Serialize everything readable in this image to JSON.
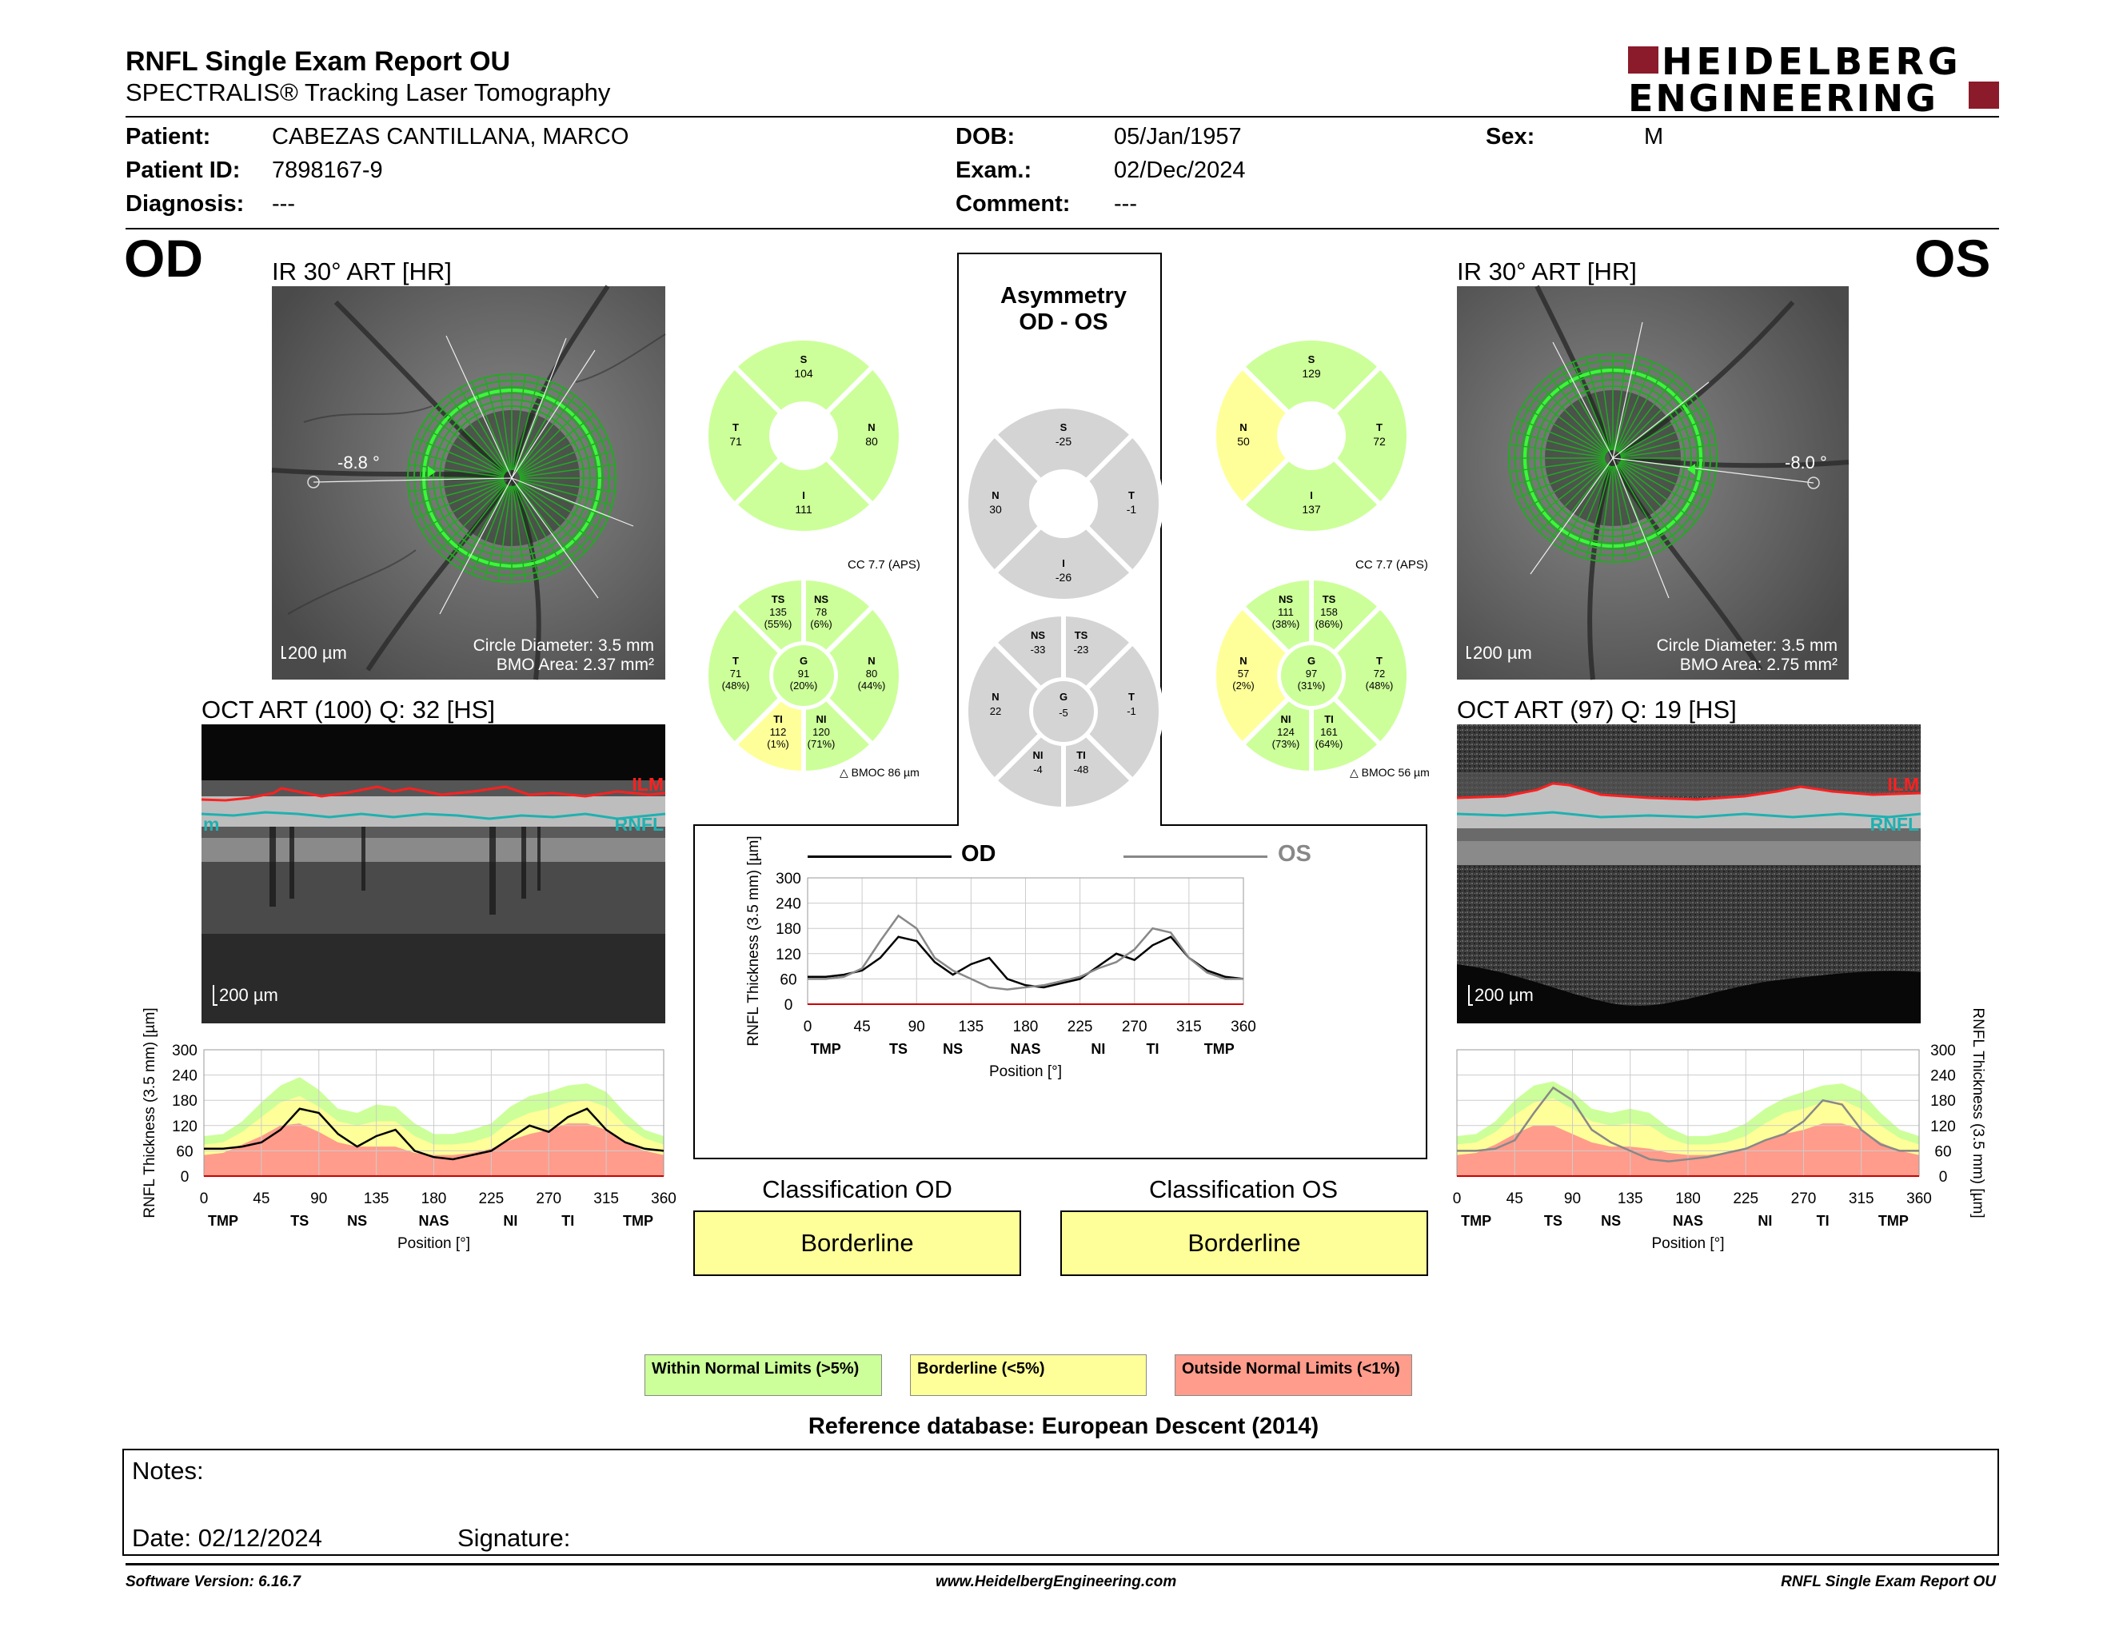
{
  "header": {
    "title": "RNFL Single Exam Report OU",
    "subtitle": "SPECTRALIS® Tracking Laser Tomography",
    "logo_line1": "HEIDELBERG",
    "logo_line2": "ENGINEERING"
  },
  "patient": {
    "patient_label": "Patient:",
    "patient_value": "CABEZAS CANTILLANA, MARCO",
    "id_label": "Patient ID:",
    "id_value": "7898167-9",
    "diagnosis_label": "Diagnosis:",
    "diagnosis_value": "---",
    "dob_label": "DOB:",
    "dob_value": "05/Jan/1957",
    "exam_label": "Exam.:",
    "exam_value": "02/Dec/2024",
    "comment_label": "Comment:",
    "comment_value": "---",
    "sex_label": "Sex:",
    "sex_value": "M"
  },
  "od": {
    "eye_label": "OD",
    "ir_title": "IR 30° ART [HR]",
    "angle": "-8.8 °",
    "scale": "200 µm",
    "circle_diameter": "Circle Diameter: 3.5 mm",
    "bmo_area": "BMO Area: 2.37 mm²",
    "oct_title": "OCT ART (100) Q: 32 [HS]",
    "oct_scale": "200 µm",
    "ilm": "ILM",
    "rnfl": "RNFL",
    "rnfl_small": "m",
    "cc": "CC 7.7 (APS)",
    "bmoc": "BMOC 86 µm",
    "quad": {
      "S": "104",
      "N": "80",
      "I": "111",
      "T": "71"
    },
    "sect": {
      "TS": [
        "135",
        "(55%)"
      ],
      "NS": [
        "78",
        "(6%)"
      ],
      "N": [
        "80",
        "(44%)"
      ],
      "NI": [
        "120",
        "(71%)"
      ],
      "TI": [
        "112",
        "(1%)"
      ],
      "T": [
        "71",
        "(48%)"
      ],
      "G": [
        "91",
        "(20%)"
      ]
    }
  },
  "os": {
    "eye_label": "OS",
    "ir_title": "IR 30° ART [HR]",
    "angle": "-8.0 °",
    "scale": "200 µm",
    "circle_diameter": "Circle Diameter: 3.5 mm",
    "bmo_area": "BMO Area: 2.75 mm²",
    "oct_title": "OCT ART (97) Q: 19 [HS]",
    "oct_scale": "200 µm",
    "ilm": "ILM",
    "rnfl": "RNFL",
    "cc": "CC 7.7 (APS)",
    "bmoc": "BMOC 56 µm",
    "quad": {
      "S": "129",
      "T": "72",
      "I": "137",
      "N": "50"
    },
    "sect": {
      "NS": [
        "111",
        "(38%)"
      ],
      "TS": [
        "158",
        "(86%)"
      ],
      "T": [
        "72",
        "(48%)"
      ],
      "TI": [
        "161",
        "(64%)"
      ],
      "NI": [
        "124",
        "(73%)"
      ],
      "N": [
        "57",
        "(2%)"
      ],
      "G": [
        "97",
        "(31%)"
      ]
    }
  },
  "asymmetry": {
    "title1": "Asymmetry",
    "title2": "OD - OS",
    "quad": {
      "S": "-25",
      "N": "30",
      "T": "-1",
      "I": "-26"
    },
    "sect": {
      "NS": "-33",
      "TS": "-23",
      "N": "22",
      "T": "-1",
      "G": "-5",
      "NI": "-4",
      "TI": "-48"
    },
    "legend_od": "OD",
    "legend_os": "OS"
  },
  "colors": {
    "within": "#ccff99",
    "borderline": "#ffff99",
    "outside": "#ff9c8c",
    "od_line": "#000000",
    "os_line": "#888888",
    "ilm": "#ff0000",
    "rnfl": "#20b0b0",
    "gray_sector": "#d4d4d4"
  },
  "chart_data": [
    {
      "type": "line",
      "title": "",
      "eye": "OD",
      "ylabel": "RNFL Thickness (3.5 mm) [µm]",
      "xlabel": "Position [°]",
      "x_ticks": [
        "0",
        "45",
        "90",
        "135",
        "180",
        "225",
        "270",
        "315",
        "360"
      ],
      "y_ticks": [
        "0",
        "60",
        "120",
        "180",
        "240",
        "300"
      ],
      "sector_labels": [
        "TMP",
        "TS",
        "NS",
        "NAS",
        "NI",
        "TI",
        "TMP"
      ],
      "xlim": [
        0,
        360
      ],
      "ylim": [
        0,
        300
      ],
      "x": [
        0,
        15,
        30,
        45,
        60,
        75,
        90,
        105,
        120,
        135,
        150,
        165,
        180,
        195,
        210,
        225,
        240,
        255,
        270,
        285,
        300,
        315,
        330,
        345,
        360
      ],
      "series": [
        {
          "name": "OD",
          "values": [
            65,
            65,
            70,
            80,
            110,
            160,
            150,
            100,
            70,
            95,
            110,
            60,
            45,
            40,
            50,
            60,
            90,
            120,
            105,
            140,
            160,
            110,
            80,
            65,
            60
          ]
        }
      ],
      "normal_upper": [
        95,
        100,
        130,
        175,
        215,
        235,
        205,
        160,
        150,
        170,
        165,
        125,
        100,
        100,
        110,
        125,
        165,
        190,
        200,
        215,
        220,
        200,
        150,
        110,
        95
      ],
      "borderline_upper": [
        75,
        80,
        105,
        140,
        175,
        190,
        165,
        130,
        120,
        130,
        130,
        95,
        75,
        75,
        80,
        95,
        130,
        150,
        160,
        175,
        180,
        165,
        120,
        90,
        75
      ],
      "outside_upper": [
        50,
        55,
        75,
        95,
        120,
        125,
        105,
        80,
        70,
        70,
        70,
        55,
        50,
        50,
        55,
        65,
        85,
        100,
        110,
        125,
        125,
        110,
        80,
        60,
        50
      ]
    },
    {
      "type": "line",
      "title": "",
      "ylabel": "RNFL Thickness (3.5 mm) [µm]",
      "xlabel": "Position [°]",
      "x_ticks": [
        "0",
        "45",
        "90",
        "135",
        "180",
        "225",
        "270",
        "315",
        "360"
      ],
      "y_ticks": [
        "0",
        "60",
        "120",
        "180",
        "240",
        "300"
      ],
      "sector_labels": [
        "TMP",
        "TS",
        "NS",
        "NAS",
        "NI",
        "TI",
        "TMP"
      ],
      "xlim": [
        0,
        360
      ],
      "ylim": [
        0,
        300
      ],
      "x": [
        0,
        15,
        30,
        45,
        60,
        75,
        90,
        105,
        120,
        135,
        150,
        165,
        180,
        195,
        210,
        225,
        240,
        255,
        270,
        285,
        300,
        315,
        330,
        345,
        360
      ],
      "series": [
        {
          "name": "OD",
          "values": [
            65,
            65,
            70,
            80,
            110,
            160,
            150,
            100,
            70,
            95,
            110,
            60,
            45,
            40,
            50,
            60,
            90,
            120,
            105,
            140,
            160,
            110,
            80,
            65,
            60
          ]
        },
        {
          "name": "OS",
          "values": [
            60,
            60,
            65,
            85,
            150,
            210,
            180,
            110,
            80,
            60,
            40,
            35,
            40,
            45,
            55,
            65,
            85,
            100,
            130,
            180,
            170,
            110,
            75,
            60,
            60
          ]
        }
      ]
    },
    {
      "type": "line",
      "title": "",
      "eye": "OS",
      "ylabel": "RNFL Thickness (3.5 mm) [µm]",
      "xlabel": "Position [°]",
      "x_ticks": [
        "0",
        "45",
        "90",
        "135",
        "180",
        "225",
        "270",
        "315",
        "360"
      ],
      "y_ticks": [
        "0",
        "60",
        "120",
        "180",
        "240",
        "300"
      ],
      "sector_labels": [
        "TMP",
        "TS",
        "NS",
        "NAS",
        "NI",
        "TI",
        "TMP"
      ],
      "xlim": [
        0,
        360
      ],
      "ylim": [
        0,
        300
      ],
      "x": [
        0,
        15,
        30,
        45,
        60,
        75,
        90,
        105,
        120,
        135,
        150,
        165,
        180,
        195,
        210,
        225,
        240,
        255,
        270,
        285,
        300,
        315,
        330,
        345,
        360
      ],
      "series": [
        {
          "name": "OS",
          "values": [
            60,
            60,
            65,
            85,
            150,
            210,
            180,
            110,
            80,
            60,
            40,
            35,
            40,
            45,
            55,
            65,
            85,
            100,
            130,
            180,
            170,
            110,
            75,
            60,
            60
          ]
        }
      ],
      "normal_upper": [
        95,
        100,
        130,
        180,
        215,
        225,
        200,
        160,
        150,
        160,
        150,
        115,
        95,
        95,
        105,
        125,
        160,
        185,
        200,
        215,
        220,
        200,
        150,
        110,
        95
      ],
      "borderline_upper": [
        75,
        80,
        105,
        145,
        175,
        185,
        160,
        130,
        120,
        125,
        120,
        90,
        75,
        75,
        80,
        95,
        125,
        150,
        160,
        175,
        180,
        160,
        120,
        90,
        75
      ],
      "outside_upper": [
        50,
        55,
        75,
        100,
        120,
        120,
        100,
        80,
        70,
        70,
        65,
        55,
        50,
        50,
        55,
        65,
        85,
        100,
        110,
        125,
        125,
        110,
        80,
        60,
        50
      ]
    }
  ],
  "classification": {
    "od_title": "Classification OD",
    "od_value": "Borderline",
    "os_title": "Classification OS",
    "os_value": "Borderline"
  },
  "legend": {
    "within": "Within Normal Limits (>5%)",
    "borderline": "Borderline (<5%)",
    "outside": "Outside Normal Limits (<1%)"
  },
  "reference": "Reference database: European Descent (2014)",
  "notes": {
    "label": "Notes:",
    "date": "Date: 02/12/2024",
    "signature": "Signature:"
  },
  "footer": {
    "software": "Software Version: 6.16.7",
    "url": "www.HeidelbergEngineering.com",
    "report": "RNFL Single Exam Report OU"
  }
}
